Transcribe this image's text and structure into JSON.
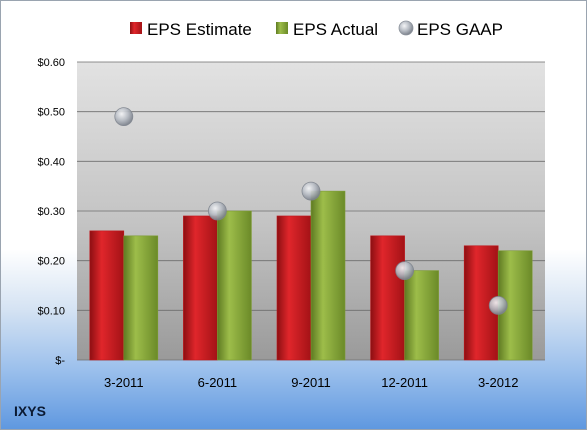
{
  "company": "IXYS",
  "colors": {
    "estimate": "#c0161b",
    "actual": "#7d9c32",
    "gaap": "#a8adb6"
  },
  "chart_data": {
    "type": "bar",
    "categories": [
      "3-2011",
      "6-2011",
      "9-2011",
      "12-2011",
      "3-2012"
    ],
    "series": [
      {
        "name": "EPS Estimate",
        "type": "bar",
        "values": [
          0.26,
          0.29,
          0.29,
          0.25,
          0.23
        ]
      },
      {
        "name": "EPS Actual",
        "type": "bar",
        "values": [
          0.25,
          0.3,
          0.34,
          0.18,
          0.22
        ]
      },
      {
        "name": "EPS GAAP",
        "type": "scatter",
        "values": [
          0.49,
          0.3,
          0.34,
          0.18,
          0.11
        ]
      }
    ],
    "ylim": [
      0,
      0.6
    ],
    "yticks": [
      0,
      0.1,
      0.2,
      0.3,
      0.4,
      0.5,
      0.6
    ],
    "ytick_labels": [
      "$-",
      "$0.10",
      "$0.20",
      "$0.30",
      "$0.40",
      "$0.50",
      "$0.60"
    ],
    "legend_position": "top",
    "grid": true
  }
}
